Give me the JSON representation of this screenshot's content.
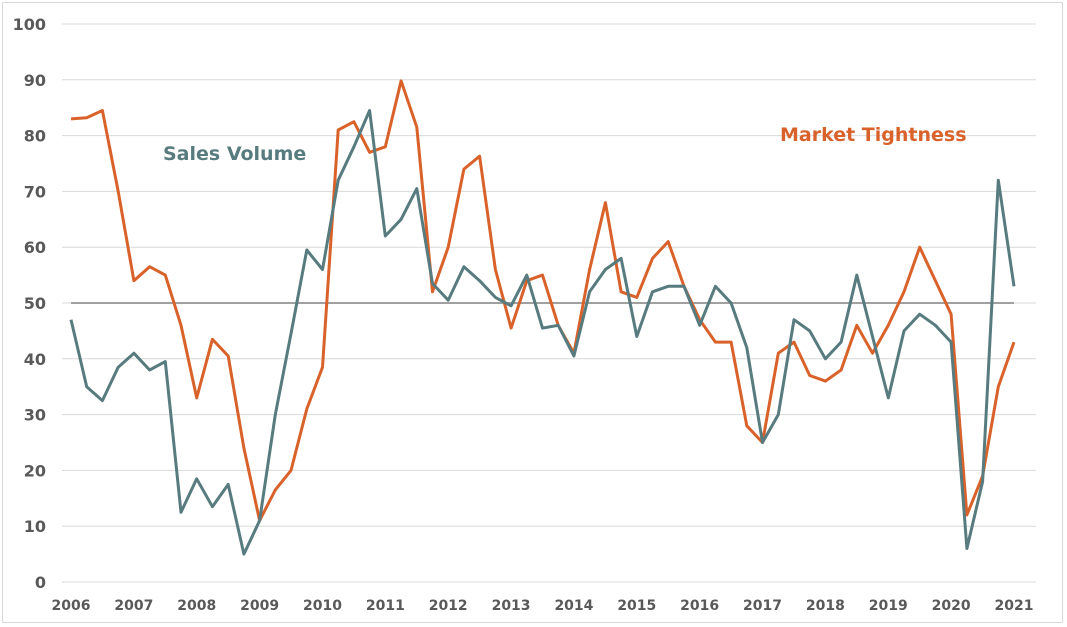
{
  "chart_data": {
    "type": "line",
    "title": "",
    "xlabel": "",
    "ylabel": "",
    "x_tick_labels": [
      "2006",
      "2007",
      "2008",
      "2009",
      "2010",
      "2011",
      "2012",
      "2013",
      "2014",
      "2015",
      "2016",
      "2017",
      "2018",
      "2019",
      "2020",
      "2021"
    ],
    "y_tick_labels": [
      "0",
      "10",
      "20",
      "30",
      "40",
      "50",
      "60",
      "70",
      "80",
      "90",
      "100"
    ],
    "ylim": [
      0,
      100
    ],
    "x_range": [
      "2006 Q1",
      "2021 Q1"
    ],
    "x_frequency": "quarterly",
    "grid": true,
    "reference_line": 50,
    "series": [
      {
        "name": "Sales Volume",
        "color": "#587b7f",
        "values": [
          47,
          35,
          32.5,
          38.5,
          41,
          38,
          39.5,
          12.5,
          18.5,
          13.5,
          17.5,
          5,
          11,
          30,
          44.5,
          59.5,
          56,
          72,
          78,
          84.5,
          62,
          65,
          70.5,
          53.5,
          50.5,
          56.5,
          54,
          51,
          49.5,
          55,
          45.5,
          46,
          40.5,
          52,
          56,
          58,
          44,
          52,
          53,
          53,
          46,
          53,
          50,
          42,
          25,
          30,
          47,
          45,
          40,
          43,
          55,
          44,
          33,
          45,
          48,
          46,
          43,
          6,
          18,
          72,
          53
        ]
      },
      {
        "name": "Market Tightness",
        "color": "#d9622b",
        "values": [
          83,
          83.2,
          84.5,
          70,
          54,
          56.5,
          55,
          46,
          33,
          43.5,
          40.5,
          24,
          11,
          16.5,
          20,
          31,
          38.5,
          81,
          82.5,
          77,
          78,
          89.8,
          81.5,
          52,
          60,
          74,
          76.3,
          56,
          45.5,
          54,
          55,
          46,
          41,
          56,
          68,
          52,
          51,
          58,
          61,
          53,
          47,
          43,
          43,
          28,
          25,
          41,
          43,
          37,
          36,
          38,
          46,
          41,
          46,
          52,
          60,
          54,
          48,
          12,
          19,
          35,
          43
        ]
      }
    ]
  }
}
